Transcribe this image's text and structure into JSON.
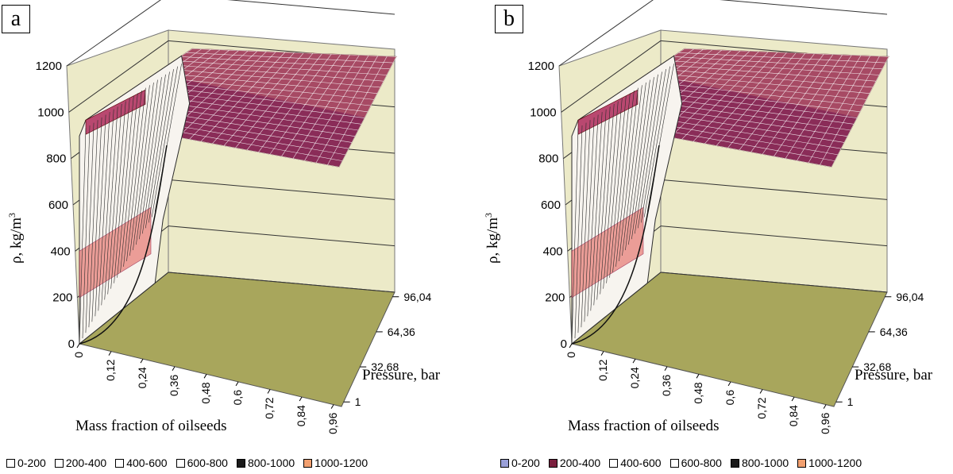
{
  "colors": {
    "wall": "#eceac8",
    "floor": "#a8a65c",
    "surface": "#8a2c58",
    "gridline": "#ffffff",
    "wire": "#2b2b2b",
    "salmon": "#e8807a"
  },
  "chart_data": [
    {
      "panel": "a",
      "type": "surface",
      "title": "",
      "ylabel": "ρ, kg/m",
      "ylabel_sup": "3",
      "xlabel": "Mass fraction of oilseeds",
      "zlabel": "Pressure, bar",
      "ylim": [
        0,
        1200
      ],
      "y_ticks": [
        "0",
        "200",
        "400",
        "600",
        "800",
        "1000",
        "1200"
      ],
      "x_ticks": [
        "0",
        "0,12",
        "0,24",
        "0,36",
        "0,48",
        "0,6",
        "0,72",
        "0,84",
        "0,96"
      ],
      "z_ticks": [
        "1",
        "32,68",
        "64,36",
        "96,04"
      ],
      "legend": [
        {
          "label": "0-200",
          "color": "#ffffff"
        },
        {
          "label": "200-400",
          "color": "#ffffff"
        },
        {
          "label": "400-600",
          "color": "#ffffff"
        },
        {
          "label": "600-800",
          "color": "#ffffff"
        },
        {
          "label": "800-1000",
          "color": "#1a1a1a"
        },
        {
          "label": "1000-1200",
          "color": "#f2a070"
        }
      ]
    },
    {
      "panel": "b",
      "type": "surface",
      "title": "",
      "ylabel": "ρ, kg/m",
      "ylabel_sup": "3",
      "xlabel": "Mass fraction of oilseeds",
      "zlabel": "Pressure, bar",
      "ylim": [
        0,
        1200
      ],
      "y_ticks": [
        "0",
        "200",
        "400",
        "600",
        "800",
        "1000",
        "1200"
      ],
      "x_ticks": [
        "0",
        "0,12",
        "0,24",
        "0,36",
        "0,48",
        "0,6",
        "0,72",
        "0,84",
        "0,96"
      ],
      "z_ticks": [
        "1",
        "32,68",
        "64,36",
        "96,04"
      ],
      "legend": [
        {
          "label": "0-200",
          "color": "#9aa0d8"
        },
        {
          "label": "200-400",
          "color": "#7a1f3d"
        },
        {
          "label": "400-600",
          "color": "#ffffff"
        },
        {
          "label": "600-800",
          "color": "#ffffff"
        },
        {
          "label": "800-1000",
          "color": "#1a1a1a"
        },
        {
          "label": "1000-1200",
          "color": "#f2a070"
        }
      ]
    }
  ]
}
